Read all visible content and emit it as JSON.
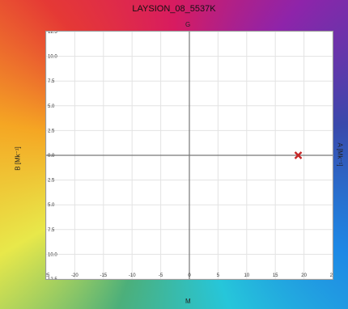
{
  "chart_data": {
    "type": "scatter",
    "title": "LAYSION_08_5537K",
    "top_axis_letter": "G",
    "bottom_axis_letter": "M",
    "left_axis_label": "B [Mk⁻¹]",
    "right_axis_label": "A [Mk⁻¹]",
    "xlim": [
      -25,
      25
    ],
    "ylim": [
      -12.5,
      12.5
    ],
    "x_ticks": [
      -25,
      -20,
      -15,
      -10,
      -5,
      0,
      5,
      10,
      15,
      20,
      25
    ],
    "y_ticks": [
      12.5,
      10.0,
      7.5,
      5.0,
      2.5,
      0.0,
      -2.5,
      -5.0,
      -7.5,
      -10.0,
      -12.5
    ],
    "x_tick_labels": [
      "-25",
      "-20",
      "-15",
      "-10",
      "-5",
      "0",
      "5",
      "10",
      "15",
      "20",
      "25"
    ],
    "y_tick_labels": [
      "12.5",
      "10.0",
      "7.5",
      "5.0",
      "2.5",
      "0.0",
      "2.5",
      "5.0",
      "7.5",
      "10.0",
      "12.5"
    ],
    "grid": true,
    "points": [
      {
        "x": 19,
        "y": 0.0,
        "marker": "x",
        "color": "#c62828"
      }
    ]
  }
}
